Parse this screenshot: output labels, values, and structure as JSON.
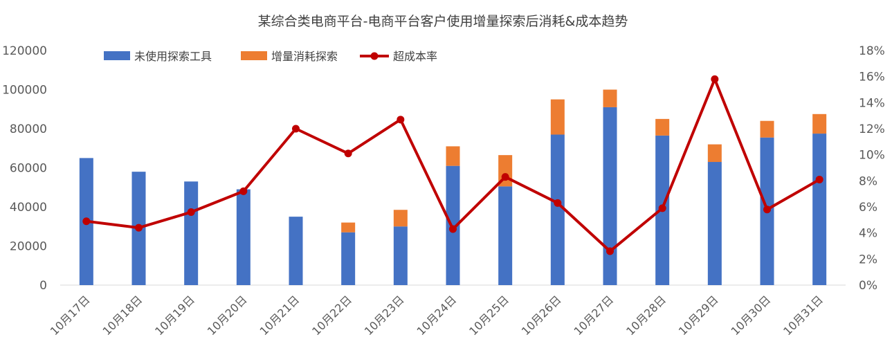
{
  "chart_data": {
    "type": "bar",
    "title": "某综合类电商平台-电商平台客户使用增量探索后消耗&成本趋势",
    "categories": [
      "10月17日",
      "10月18日",
      "10月19日",
      "10月20日",
      "10月21日",
      "10月22日",
      "10月23日",
      "10月24日",
      "10月25日",
      "10月26日",
      "10月27日",
      "10月28日",
      "10月29日",
      "10月30日",
      "10月31日"
    ],
    "series": [
      {
        "name": "未使用探索工具",
        "type": "bar",
        "stack": "consumption",
        "axis": "left",
        "color": "#4472C4",
        "values": [
          65000,
          58000,
          53000,
          49000,
          35000,
          27000,
          30000,
          61000,
          50500,
          77000,
          91000,
          76500,
          63000,
          75500,
          77500
        ]
      },
      {
        "name": "增量消耗探索",
        "type": "bar",
        "stack": "consumption",
        "axis": "left",
        "color": "#ED7D31",
        "values": [
          0,
          0,
          0,
          0,
          0,
          5000,
          8500,
          10000,
          16000,
          18000,
          9000,
          8500,
          9000,
          8500,
          10000
        ]
      },
      {
        "name": "超成本率",
        "type": "line",
        "axis": "right",
        "color": "#C00000",
        "values": [
          0.049,
          0.044,
          0.056,
          0.072,
          0.12,
          0.101,
          0.127,
          0.043,
          0.083,
          0.063,
          0.026,
          0.059,
          0.158,
          0.058,
          0.081
        ]
      }
    ],
    "y_left": {
      "min": 0,
      "max": 120000,
      "ticks": [
        "0",
        "20000",
        "40000",
        "60000",
        "80000",
        "100000",
        "120000"
      ]
    },
    "y_right": {
      "min": 0,
      "max": 0.18,
      "ticks": [
        "0%",
        "2%",
        "4%",
        "6%",
        "8%",
        "10%",
        "12%",
        "14%",
        "16%",
        "18%"
      ]
    },
    "grid": false,
    "legend_position": "top-left"
  }
}
